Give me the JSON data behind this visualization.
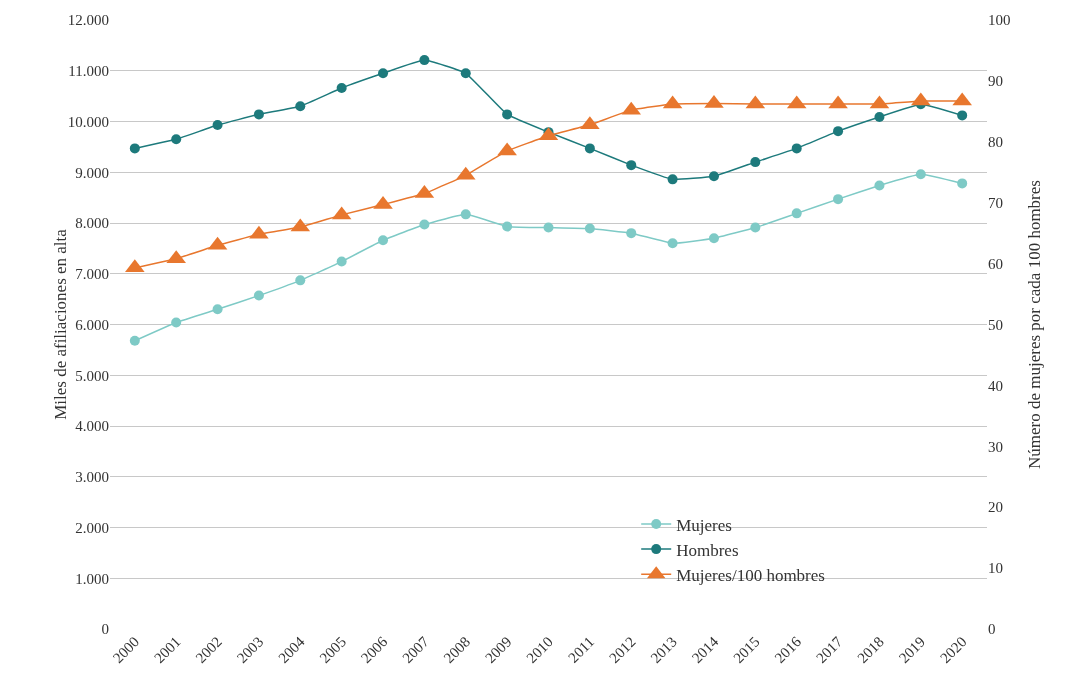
{
  "chart_data": {
    "type": "line",
    "x": [
      2000,
      2001,
      2002,
      2003,
      2004,
      2005,
      2006,
      2007,
      2008,
      2009,
      2010,
      2011,
      2012,
      2013,
      2014,
      2015,
      2016,
      2017,
      2018,
      2019,
      2020
    ],
    "series": [
      {
        "name": "Mujeres",
        "color": "#7ecac6",
        "marker": "circle",
        "values": [
          5680,
          6040,
          6300,
          6570,
          6870,
          7240,
          7660,
          7970,
          8170,
          7930,
          7910,
          7890,
          7800,
          7600,
          7700,
          7910,
          8190,
          8470,
          8740,
          8960,
          8780
        ]
      },
      {
        "name": "Hombres",
        "color": "#1d7a7c",
        "marker": "circle",
        "values": [
          9470,
          9650,
          9930,
          10140,
          10300,
          10660,
          10950,
          11210,
          10950,
          10140,
          9790,
          9470,
          9140,
          8860,
          8920,
          9200,
          9470,
          9810,
          10090,
          10340,
          10120
        ]
      },
      {
        "name": "Mujeres/100 hombres",
        "color": "#e8772e",
        "marker": "triangle",
        "axis": "y2",
        "values": [
          59.3,
          60.8,
          63,
          64.8,
          66,
          68,
          69.7,
          71.5,
          74.5,
          78.5,
          81,
          82.8,
          85.2,
          86.2,
          86.3,
          86.2,
          86.2,
          86.2,
          86.2,
          86.7,
          86.7
        ]
      }
    ],
    "ylabel": "Miles de afiliaciones en alta",
    "y2label": "Número de mujeres por cada 100 hombres",
    "xlim": [
      1999.4,
      2020.6
    ],
    "xticks": [
      2000,
      2001,
      2002,
      2003,
      2004,
      2005,
      2006,
      2007,
      2008,
      2009,
      2010,
      2011,
      2012,
      2013,
      2014,
      2015,
      2016,
      2017,
      2018,
      2019,
      2020
    ],
    "ylim": [
      0,
      12000
    ],
    "yticks": [
      {
        "value": 0,
        "label": "0"
      },
      {
        "value": 1000,
        "label": "1.000"
      },
      {
        "value": 2000,
        "label": "2.000"
      },
      {
        "value": 3000,
        "label": "3.000"
      },
      {
        "value": 4000,
        "label": "4.000"
      },
      {
        "value": 5000,
        "label": "5.000"
      },
      {
        "value": 6000,
        "label": "6.000"
      },
      {
        "value": 7000,
        "label": "7.000"
      },
      {
        "value": 8000,
        "label": "8.000"
      },
      {
        "value": 9000,
        "label": "9.000"
      },
      {
        "value": 10000,
        "label": "10.000"
      },
      {
        "value": 11000,
        "label": "11.000"
      },
      {
        "value": 12000,
        "label": "12.000"
      }
    ],
    "y2lim": [
      0,
      100
    ],
    "y2ticks": [
      0,
      10,
      20,
      30,
      40,
      50,
      60,
      70,
      80,
      90,
      100
    ],
    "grid": "y",
    "legend": "bottom right"
  }
}
